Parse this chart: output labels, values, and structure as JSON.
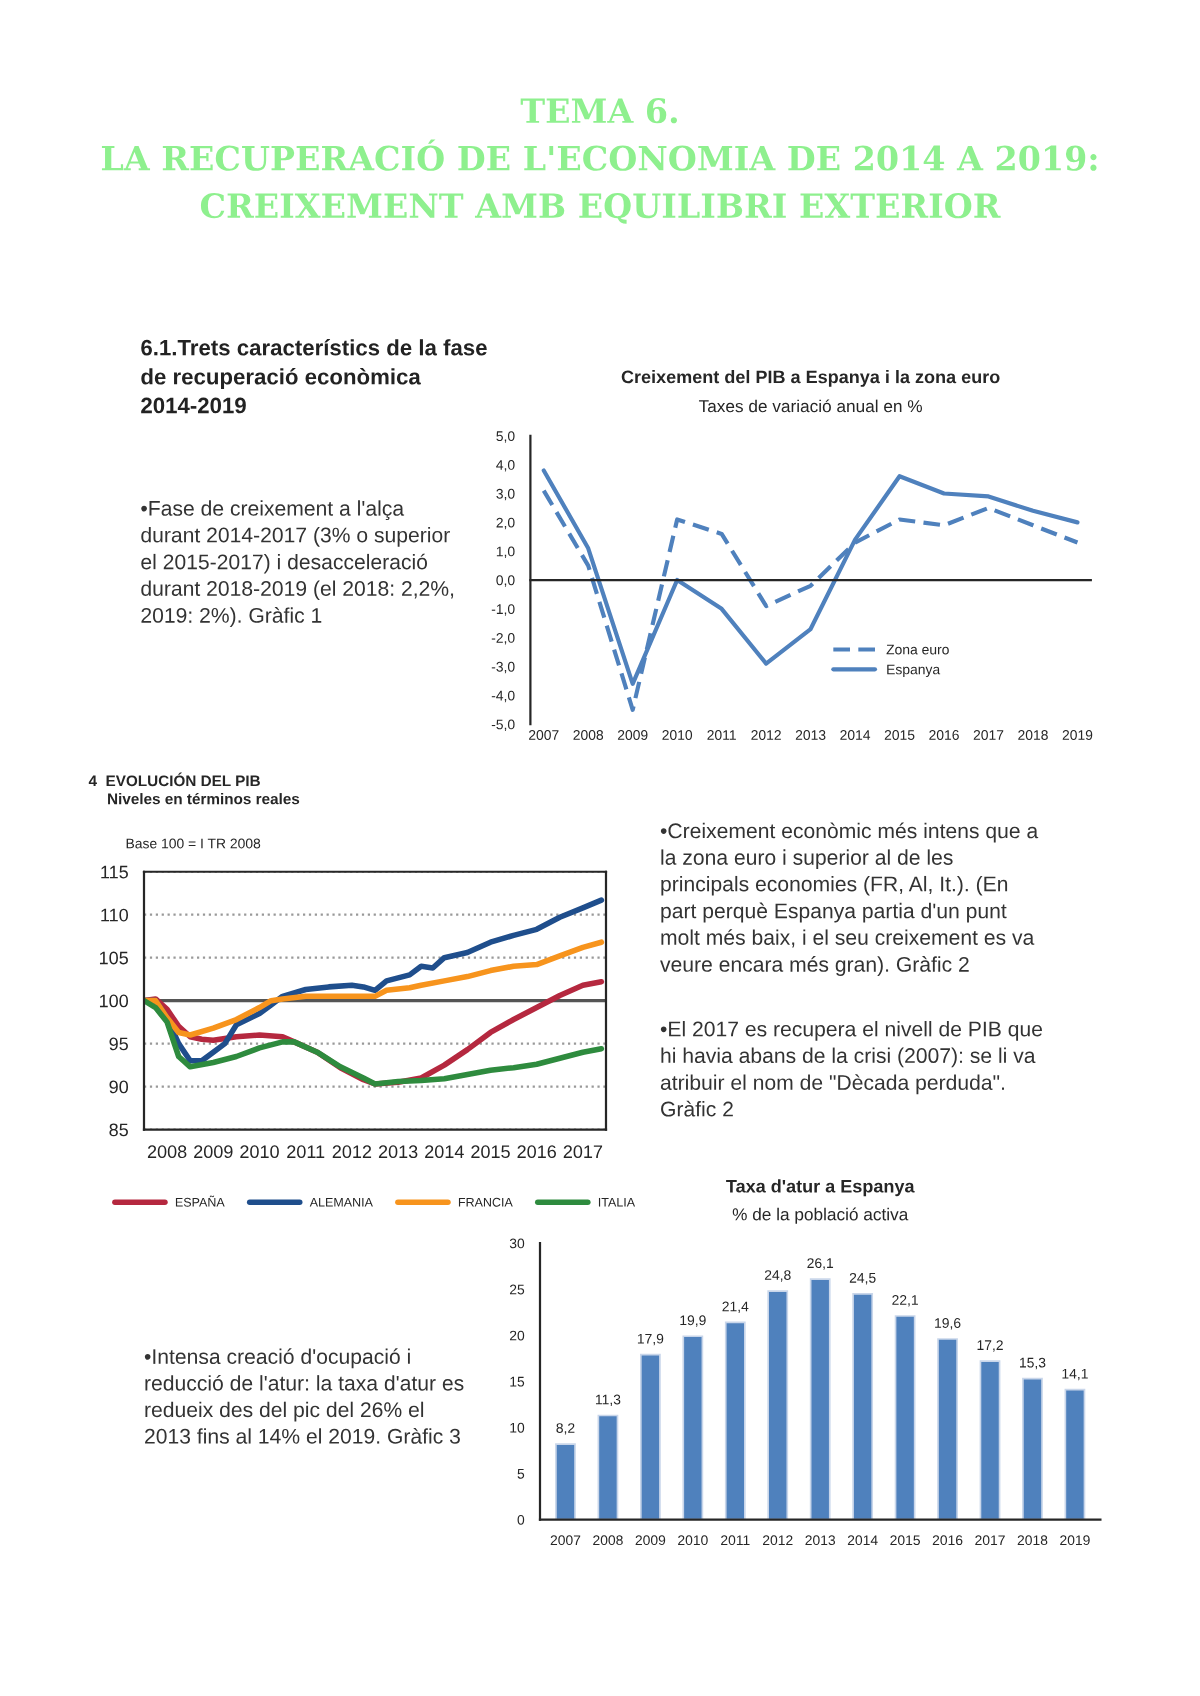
{
  "chart_data": [
    {
      "type": "other",
      "title": "TEMA 6.\nLA RECUPERACIÓ DE L'ECONOMIA DE 2014 A 2019:\nCREIXEMENT AMB EQUILIBRI EXTERIOR",
      "subtitle": "6.1.Trets característics de la fase\nde recuperació econòmica\n2014-2019",
      "annotations": [
        "•Fase de creixement a l'alça\ndurant 2014-2017 (3% o superior\nel 2015-2017) i desacceleració\ndurant 2018-2019 (el 2018: 2,2%,\n2019: 2%). Gràfic 1",
        "•Creixement econòmic més intens que a\nla zona euro i superior al de les\nprincipals economies (FR, Al, It.). (En\npart perquè Espanya partia d'un punt\nmolt més baix, i el seu creixement es va\nveure encara més gran). Gràfic 2",
        "•El 2017 es recupera el nivell de PIB que\nhi havia abans de la crisi (2007): se li va\natribuir el nom de \"Dècada perduda\".\nGràfic 2",
        "•Intensa creació d'ocupació i\nreducció de l'atur: la taxa d'atur es\nredueix des del pic del 26% el\n2013 fins al 14% el 2019. Gràfic 3"
      ]
    },
    {
      "type": "line",
      "title": "Creixement del PIB a Espanya i la zona euro",
      "subtitle": "Taxes de variació anual en %",
      "categories": [
        "2007",
        "2008",
        "2009",
        "2010",
        "2011",
        "2012",
        "2013",
        "2014",
        "2015",
        "2016",
        "2017",
        "2018",
        "2019"
      ],
      "series": [
        {
          "name": "Zona euro",
          "color": "#4f81bd",
          "line_style": "dashed",
          "values": [
            3.1,
            0.5,
            -4.5,
            2.1,
            1.6,
            -0.9,
            -0.2,
            1.3,
            2.1,
            1.9,
            2.5,
            1.9,
            1.3
          ]
        },
        {
          "name": "Espanya",
          "color": "#4f81bd",
          "line_style": "solid",
          "values": [
            3.8,
            1.1,
            -3.6,
            0.0,
            -1.0,
            -2.9,
            -1.7,
            1.4,
            3.6,
            3.0,
            2.9,
            2.4,
            2.0
          ]
        }
      ],
      "ylim": [
        -5,
        5
      ],
      "yticks": [
        {
          "value": -5,
          "label": "-5,0"
        },
        {
          "value": -4,
          "label": "-4,0"
        },
        {
          "value": -3,
          "label": "-3,0"
        },
        {
          "value": -2,
          "label": "-2,0"
        },
        {
          "value": -1,
          "label": "-1,0"
        },
        {
          "value": 0,
          "label": "0,0"
        },
        {
          "value": 1,
          "label": "1,0"
        },
        {
          "value": 2,
          "label": "2,0"
        },
        {
          "value": 3,
          "label": "3,0"
        },
        {
          "value": 4,
          "label": "4,0"
        },
        {
          "value": 5,
          "label": "5,0"
        }
      ],
      "legend": "bottom right"
    },
    {
      "type": "line",
      "title": "4  EVOLUCIÓN DEL PIB",
      "subtitle": "Niveles en términos reales",
      "annotations": [
        "Base 100 = I TR 2008"
      ],
      "series": [
        {
          "name": "ESPAÑA",
          "color": "#b5283f",
          "x": [
            2008.0,
            2008.25,
            2008.5,
            2008.75,
            2009.0,
            2009.25,
            2009.5,
            2010.0,
            2010.5,
            2011.0,
            2011.25,
            2011.75,
            2012.25,
            2012.75,
            2013.0,
            2013.5,
            2014.0,
            2014.5,
            2015.0,
            2015.5,
            2016.0,
            2016.5,
            2017.0,
            2017.5,
            2017.9
          ],
          "values": [
            100,
            100.2,
            99,
            97,
            95.8,
            95.5,
            95.4,
            95.8,
            96,
            95.8,
            95.2,
            94,
            92.2,
            90.8,
            90.3,
            90.5,
            91,
            92.5,
            94.3,
            96.3,
            97.8,
            99.2,
            100.6,
            101.8,
            102.2
          ]
        },
        {
          "name": "ALEMANIA",
          "color": "#1f4e8c",
          "x": [
            2008.0,
            2008.25,
            2008.5,
            2008.75,
            2009.0,
            2009.25,
            2009.5,
            2009.75,
            2010.0,
            2010.5,
            2010.75,
            2011.0,
            2011.5,
            2012.0,
            2012.5,
            2012.75,
            2013.0,
            2013.25,
            2013.75,
            2014.0,
            2014.25,
            2014.5,
            2015.0,
            2015.5,
            2016.0,
            2016.5,
            2017.0,
            2017.5,
            2017.9
          ],
          "values": [
            100,
            100,
            98,
            95,
            93,
            93,
            94,
            95,
            97.2,
            98.5,
            99.5,
            100.5,
            101.3,
            101.6,
            101.8,
            101.6,
            101.2,
            102.3,
            103,
            104,
            103.8,
            105,
            105.6,
            106.8,
            107.6,
            108.3,
            109.7,
            110.8,
            111.7
          ]
        },
        {
          "name": "FRANCIA",
          "color": "#f7941d",
          "x": [
            2008.0,
            2008.25,
            2008.5,
            2008.75,
            2009.0,
            2009.5,
            2010.0,
            2010.5,
            2010.75,
            2011.0,
            2011.5,
            2012.0,
            2012.5,
            2013.0,
            2013.25,
            2013.75,
            2014.0,
            2014.5,
            2015.0,
            2015.5,
            2016.0,
            2016.5,
            2017.0,
            2017.5,
            2017.9
          ],
          "values": [
            100,
            100,
            98,
            96.3,
            96,
            96.8,
            97.8,
            99.2,
            100,
            100.2,
            100.5,
            100.5,
            100.5,
            100.5,
            101.2,
            101.5,
            101.8,
            102.3,
            102.8,
            103.5,
            104,
            104.2,
            105.2,
            106.2,
            106.8
          ]
        },
        {
          "name": "ITALIA",
          "color": "#2e8b3e",
          "x": [
            2008.0,
            2008.25,
            2008.5,
            2008.75,
            2009.0,
            2009.5,
            2010.0,
            2010.5,
            2011.0,
            2011.25,
            2011.75,
            2012.25,
            2012.75,
            2013.0,
            2013.5,
            2014.0,
            2014.5,
            2015.0,
            2015.5,
            2016.0,
            2016.5,
            2017.0,
            2017.5,
            2017.9
          ],
          "values": [
            100,
            99.2,
            97.5,
            93.5,
            92.3,
            92.8,
            93.5,
            94.5,
            95.2,
            95.2,
            94,
            92.3,
            91,
            90.3,
            90.6,
            90.7,
            90.9,
            91.4,
            91.9,
            92.2,
            92.6,
            93.3,
            94,
            94.4
          ]
        }
      ],
      "xlim": [
        2008,
        2018
      ],
      "xticks": [
        {
          "value": 2008.5,
          "label": "2008"
        },
        {
          "value": 2009.5,
          "label": "2009"
        },
        {
          "value": 2010.5,
          "label": "2010"
        },
        {
          "value": 2011.5,
          "label": "2011"
        },
        {
          "value": 2012.5,
          "label": "2012"
        },
        {
          "value": 2013.5,
          "label": "2013"
        },
        {
          "value": 2014.5,
          "label": "2014"
        },
        {
          "value": 2015.5,
          "label": "2015"
        },
        {
          "value": 2016.5,
          "label": "2016"
        },
        {
          "value": 2017.5,
          "label": "2017"
        }
      ],
      "ylim": [
        85,
        115
      ],
      "yticks": [
        85,
        90,
        95,
        100,
        105,
        110,
        115
      ],
      "ref_lines": [
        {
          "axis": "y",
          "value": 100,
          "label": null,
          "color": "#555555"
        }
      ],
      "grid": "y",
      "legend": "bottom"
    },
    {
      "type": "bar",
      "title": "Taxa d'atur a Espanya",
      "subtitle": "% de la població activa",
      "categories": [
        "2007",
        "2008",
        "2009",
        "2010",
        "2011",
        "2012",
        "2013",
        "2014",
        "2015",
        "2016",
        "2017",
        "2018",
        "2019"
      ],
      "values": [
        8.2,
        11.3,
        17.9,
        19.9,
        21.4,
        24.8,
        26.1,
        24.5,
        22.1,
        19.6,
        17.2,
        15.3,
        14.1
      ],
      "value_labels": [
        "8,2",
        "11,3",
        "17,9",
        "19,9",
        "21,4",
        "24,8",
        "26,1",
        "24,5",
        "22,1",
        "19,6",
        "17,2",
        "15,3",
        "14,1"
      ],
      "color": "#4f81bd",
      "ylim": [
        0,
        30
      ],
      "yticks": [
        0,
        5,
        10,
        15,
        20,
        25,
        30
      ],
      "grid": false
    }
  ]
}
